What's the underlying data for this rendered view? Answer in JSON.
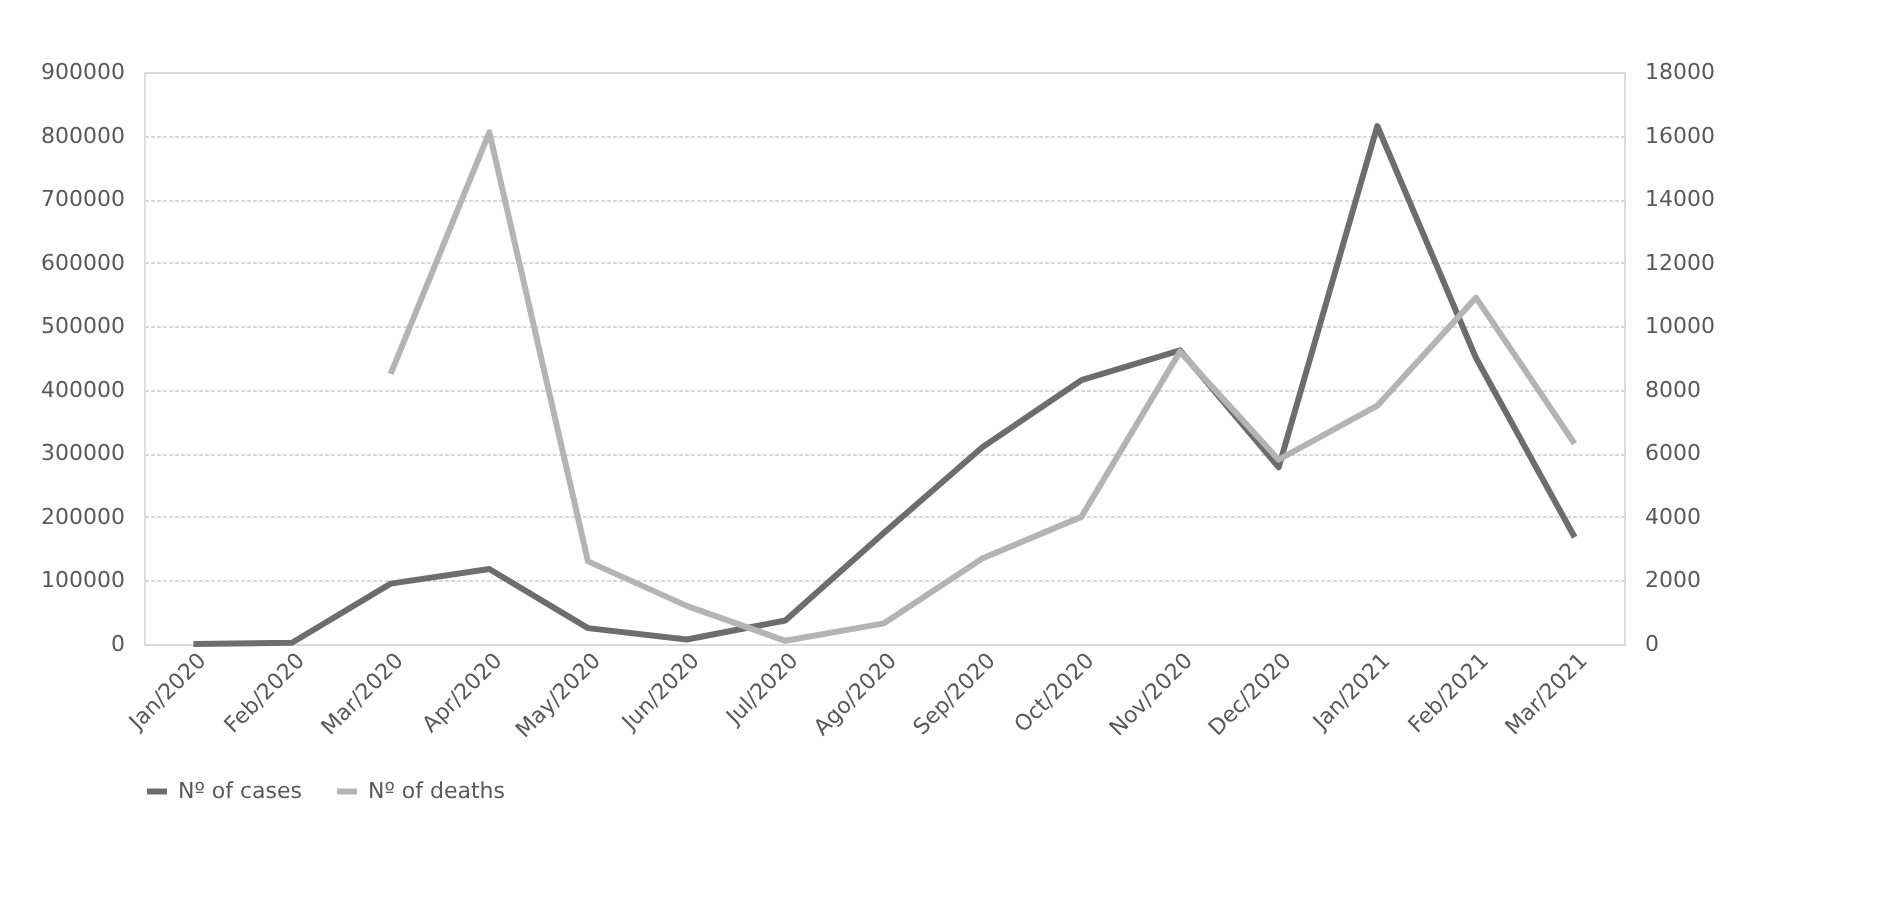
{
  "chart_data": {
    "type": "line",
    "categories": [
      "Jan/2020",
      "Feb/2020",
      "Mar/2020",
      "Apr/2020",
      "May/2020",
      "Jun/2020",
      "Jul/2020",
      "Ago/2020",
      "Sep/2020",
      "Oct/2020",
      "Nov/2020",
      "Dec/2020",
      "Jan/2021",
      "Feb/2021",
      "Mar/2021"
    ],
    "series": [
      {
        "name": "Nº of cases",
        "color": "#6d6d6d",
        "axis": "y",
        "values": [
          0,
          2000,
          95000,
          118000,
          25000,
          7000,
          37000,
          175000,
          310000,
          415000,
          462000,
          278000,
          815000,
          450000,
          168000
        ]
      },
      {
        "name": "Nº of deaths",
        "color": "#b4b4b4",
        "axis": "y2",
        "values": [
          null,
          null,
          8500,
          16100,
          2600,
          1200,
          100,
          650,
          2700,
          4000,
          9200,
          5800,
          7500,
          10900,
          6300
        ]
      }
    ],
    "ylim": [
      0,
      900000
    ],
    "yticks": [
      0,
      100000,
      200000,
      300000,
      400000,
      500000,
      600000,
      700000,
      800000,
      900000
    ],
    "y2lim": [
      0,
      18000
    ],
    "y2ticks": [
      0,
      2000,
      4000,
      6000,
      8000,
      10000,
      12000,
      14000,
      16000,
      18000
    ],
    "grid": "y",
    "legend": "bottom",
    "marker": "none",
    "line_style": "solid"
  }
}
